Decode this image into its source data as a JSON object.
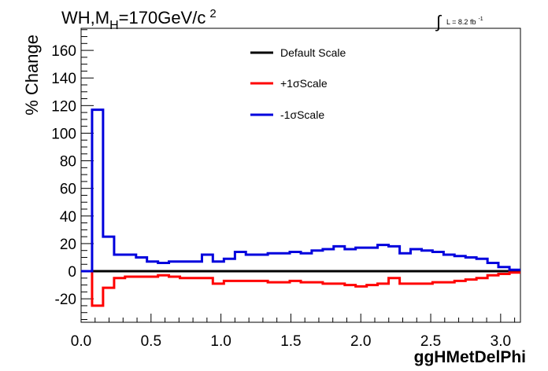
{
  "chart_data": {
    "type": "line",
    "title_main": "WH,M",
    "title_sub": "H",
    "title_rest": "=170GeV/c",
    "title_sup": "2",
    "lumi_label": "L = 8.2 fb",
    "lumi_sup": "-1",
    "xlabel": "ggHMetDelPhi",
    "ylabel": "% Change",
    "xlim": [
      0.0,
      3.14159
    ],
    "ylim": [
      -37,
      176
    ],
    "x_ticks": [
      {
        "value": 0.0,
        "label": "0.0"
      },
      {
        "value": 0.5,
        "label": "0.5"
      },
      {
        "value": 1.0,
        "label": "1.0"
      },
      {
        "value": 1.5,
        "label": "1.5"
      },
      {
        "value": 2.0,
        "label": "2.0"
      },
      {
        "value": 2.5,
        "label": "2.5"
      },
      {
        "value": 3.0,
        "label": "3.0"
      }
    ],
    "y_ticks": [
      {
        "value": -20,
        "label": "-20"
      },
      {
        "value": 0,
        "label": "0"
      },
      {
        "value": 20,
        "label": "20"
      },
      {
        "value": 40,
        "label": "40"
      },
      {
        "value": 60,
        "label": "60"
      },
      {
        "value": 80,
        "label": "80"
      },
      {
        "value": 100,
        "label": "100"
      },
      {
        "value": 120,
        "label": "120"
      },
      {
        "value": 140,
        "label": "140"
      },
      {
        "value": 160,
        "label": "160"
      }
    ],
    "bin_edges": [
      0.0,
      0.0785,
      0.157,
      0.236,
      0.314,
      0.393,
      0.471,
      0.55,
      0.628,
      0.707,
      0.785,
      0.864,
      0.942,
      1.021,
      1.1,
      1.178,
      1.257,
      1.335,
      1.414,
      1.492,
      1.571,
      1.649,
      1.728,
      1.806,
      1.885,
      1.963,
      2.042,
      2.12,
      2.199,
      2.278,
      2.356,
      2.435,
      2.513,
      2.592,
      2.67,
      2.749,
      2.827,
      2.906,
      2.984,
      3.063,
      3.14159
    ],
    "legend_position": "top-center",
    "series": [
      {
        "name": "Default Scale",
        "color": "#000000",
        "values": [
          0,
          0,
          0,
          0,
          0,
          0,
          0,
          0,
          0,
          0,
          0,
          0,
          0,
          0,
          0,
          0,
          0,
          0,
          0,
          0,
          0,
          0,
          0,
          0,
          0,
          0,
          0,
          0,
          0,
          0,
          0,
          0,
          0,
          0,
          0,
          0,
          0,
          0,
          0,
          0
        ]
      },
      {
        "name": "+1σScale",
        "color": "#ff0000",
        "values": [
          0,
          -25,
          -12,
          -5,
          -4,
          -4,
          -4,
          -3,
          -4,
          -5,
          -5,
          -5,
          -9,
          -7,
          -7,
          -7,
          -7,
          -8,
          -8,
          -7,
          -8,
          -8,
          -9,
          -9,
          -10,
          -11,
          -10,
          -9,
          -5,
          -9,
          -9,
          -9,
          -8,
          -8,
          -7,
          -6,
          -5,
          -3,
          -2,
          -1
        ]
      },
      {
        "name": "-1σScale",
        "color": "#0000dd",
        "values": [
          0,
          117,
          25,
          12,
          12,
          10,
          7,
          6,
          7,
          7,
          7,
          12,
          7,
          9,
          14,
          12,
          12,
          13,
          13,
          14,
          13,
          15,
          16,
          18,
          16,
          17,
          17,
          19,
          18,
          13,
          16,
          15,
          14,
          12,
          11,
          10,
          9,
          6,
          3,
          1
        ]
      }
    ]
  }
}
